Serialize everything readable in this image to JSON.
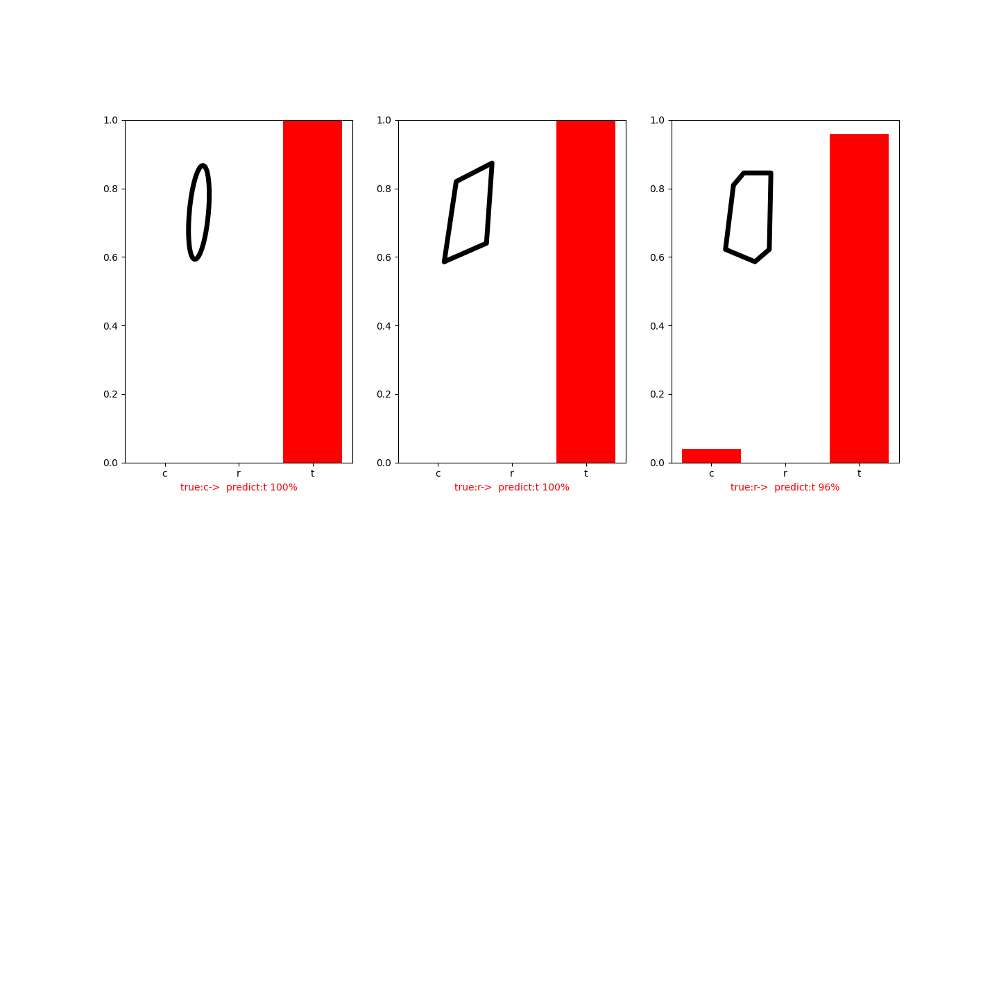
{
  "chart_data": [
    {
      "type": "bar",
      "categories": [
        "c",
        "r",
        "t"
      ],
      "values": [
        0.0,
        0.0,
        1.0
      ],
      "color": "#ff0000",
      "xlabel": "true:c->  predict:t 100%",
      "ylim": [
        0,
        1
      ],
      "yticks": [
        {
          "value": 0,
          "label": "0.0"
        },
        {
          "value": 0.2,
          "label": "0.2"
        },
        {
          "value": 0.4,
          "label": "0.4"
        },
        {
          "value": 0.6,
          "label": "0.6"
        },
        {
          "value": 0.8,
          "label": "0.8"
        },
        {
          "value": 1,
          "label": "1.0"
        }
      ]
    },
    {
      "type": "bar",
      "categories": [
        "c",
        "r",
        "t"
      ],
      "values": [
        0.0,
        0.0,
        1.0
      ],
      "color": "#ff0000",
      "xlabel": "true:r->  predict:t 100%",
      "ylim": [
        0,
        1
      ],
      "yticks": [
        {
          "value": 0,
          "label": "0.0"
        },
        {
          "value": 0.2,
          "label": "0.2"
        },
        {
          "value": 0.4,
          "label": "0.4"
        },
        {
          "value": 0.6,
          "label": "0.6"
        },
        {
          "value": 0.8,
          "label": "0.8"
        },
        {
          "value": 1,
          "label": "1.0"
        }
      ]
    },
    {
      "type": "bar",
      "categories": [
        "c",
        "r",
        "t"
      ],
      "values": [
        0.04,
        0.0,
        0.96
      ],
      "color": "#ff0000",
      "xlabel": "true:r->  predict:t 96%",
      "ylim": [
        0,
        1
      ],
      "yticks": [
        {
          "value": 0,
          "label": "0.0"
        },
        {
          "value": 0.2,
          "label": "0.2"
        },
        {
          "value": 0.4,
          "label": "0.4"
        },
        {
          "value": 0.6,
          "label": "0.6"
        },
        {
          "value": 0.8,
          "label": "0.8"
        },
        {
          "value": 1,
          "label": "1.0"
        }
      ]
    }
  ]
}
